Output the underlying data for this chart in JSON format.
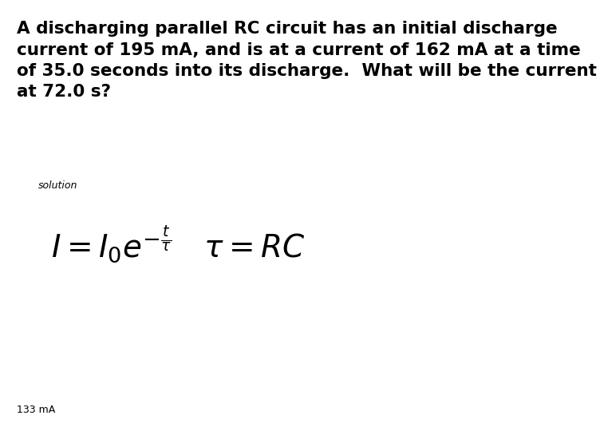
{
  "background_color": "#ffffff",
  "problem_line1": "A discharging parallel RC circuit has an initial discharge",
  "problem_line2": "current of 195 mA, and is at a current of 162 mA at a time",
  "problem_line3": "of 35.0 seconds into its discharge.  What will be the current",
  "problem_line4": "at 72.0 s?",
  "solution_label": "solution",
  "answer_text": "133 mA",
  "problem_fontsize": 15.5,
  "solution_fontsize": 9,
  "formula_fontsize": 28,
  "answer_fontsize": 9,
  "text_color": "#000000"
}
